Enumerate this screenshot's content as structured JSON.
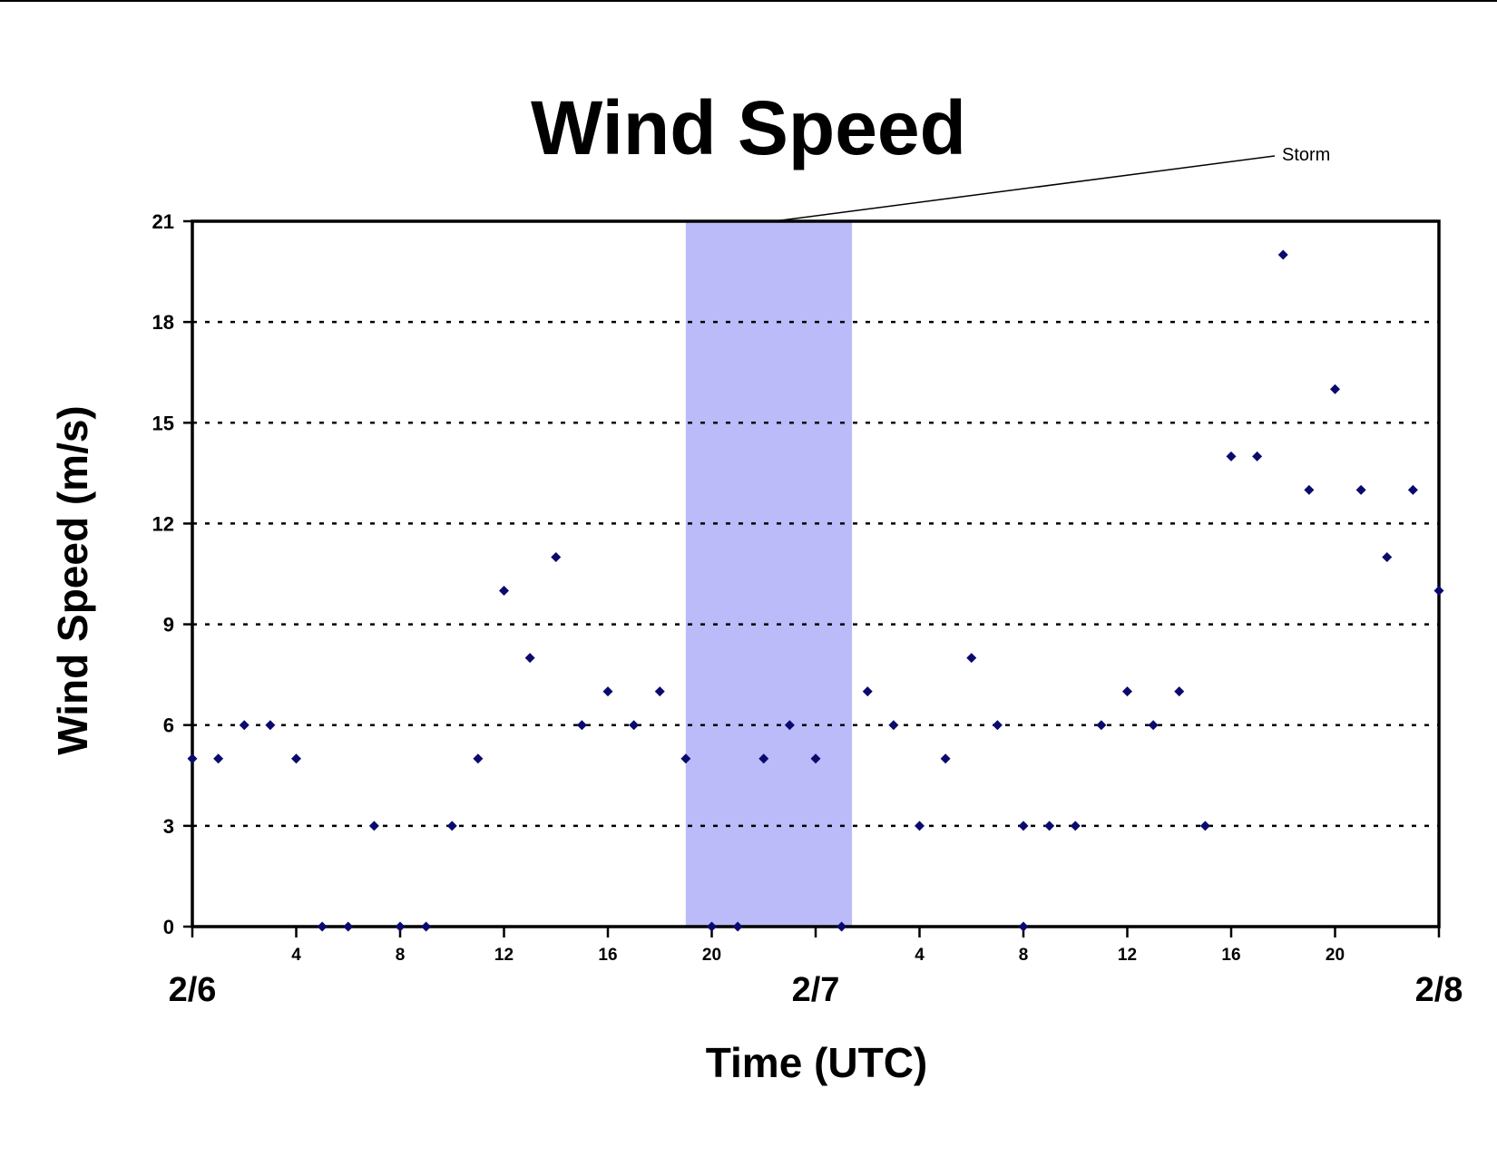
{
  "chart_data": {
    "type": "scatter",
    "title": "Wind Speed",
    "xlabel": "Time (UTC)",
    "ylabel": "Wind Speed (m/s)",
    "ylim": [
      0,
      21
    ],
    "yticks": [
      0,
      3,
      6,
      9,
      12,
      15,
      18,
      21
    ],
    "xlim_hours": [
      0,
      48
    ],
    "xticks": [
      {
        "h": 4,
        "label": "4"
      },
      {
        "h": 8,
        "label": "8"
      },
      {
        "h": 12,
        "label": "12"
      },
      {
        "h": 16,
        "label": "16"
      },
      {
        "h": 20,
        "label": "20"
      },
      {
        "h": 28,
        "label": "4"
      },
      {
        "h": 32,
        "label": "8"
      },
      {
        "h": 36,
        "label": "12"
      },
      {
        "h": 40,
        "label": "16"
      },
      {
        "h": 44,
        "label": "20"
      }
    ],
    "date_labels": [
      {
        "h": 0,
        "label": "2/6"
      },
      {
        "h": 24,
        "label": "2/7"
      },
      {
        "h": 48,
        "label": "2/8"
      }
    ],
    "grid": "horizontal dotted",
    "marker_color": "#0a0a6e",
    "storm_color": "#bbbbf9",
    "storm_span": [
      19,
      25.4
    ],
    "annotation": "Storm",
    "points": [
      [
        0,
        5
      ],
      [
        1,
        5
      ],
      [
        2,
        6
      ],
      [
        3,
        6
      ],
      [
        4,
        5
      ],
      [
        5,
        0
      ],
      [
        6,
        0
      ],
      [
        7,
        3
      ],
      [
        8,
        0
      ],
      [
        9,
        0
      ],
      [
        10,
        3
      ],
      [
        11,
        5
      ],
      [
        12,
        10
      ],
      [
        13,
        8
      ],
      [
        14,
        11
      ],
      [
        15,
        6
      ],
      [
        16,
        7
      ],
      [
        17,
        6
      ],
      [
        18,
        7
      ],
      [
        19,
        5
      ],
      [
        20,
        0
      ],
      [
        21,
        0
      ],
      [
        22,
        5
      ],
      [
        23,
        6
      ],
      [
        24,
        5
      ],
      [
        25,
        0
      ],
      [
        26,
        7
      ],
      [
        27,
        6
      ],
      [
        28,
        3
      ],
      [
        29,
        5
      ],
      [
        30,
        8
      ],
      [
        31,
        6
      ],
      [
        32,
        3
      ],
      [
        32,
        0
      ],
      [
        33,
        3
      ],
      [
        34,
        3
      ],
      [
        35,
        6
      ],
      [
        36,
        7
      ],
      [
        37,
        6
      ],
      [
        38,
        7
      ],
      [
        39,
        3
      ],
      [
        40,
        14
      ],
      [
        41,
        14
      ],
      [
        42,
        20
      ],
      [
        43,
        13
      ],
      [
        44,
        16
      ],
      [
        45,
        13
      ],
      [
        46,
        11
      ],
      [
        47,
        13
      ],
      [
        48,
        10
      ]
    ]
  }
}
